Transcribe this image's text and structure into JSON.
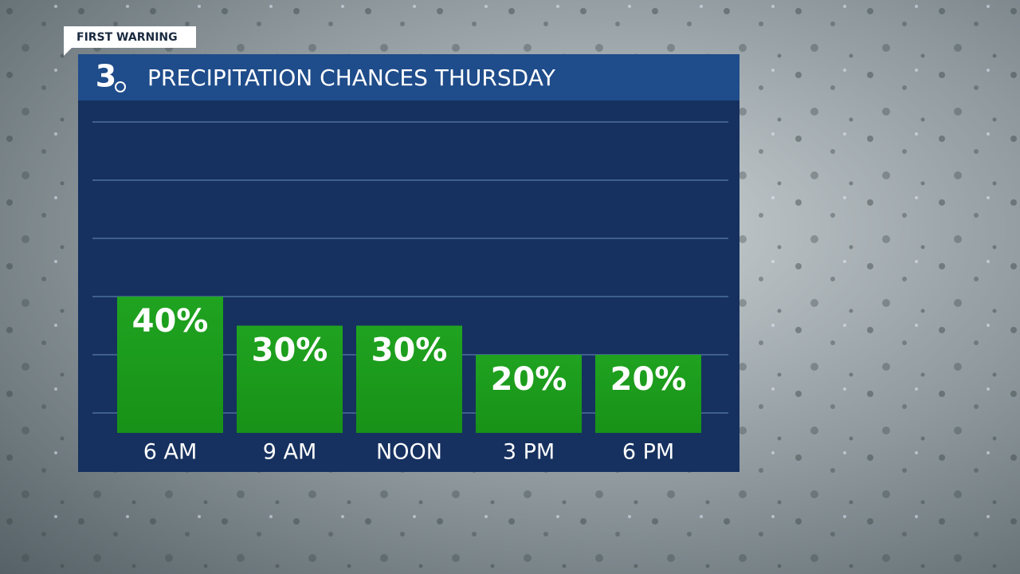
{
  "badge": "FIRST WARNING",
  "logo": "3",
  "chart_data": {
    "type": "bar",
    "title": "PRECIPITATION CHANCES THURSDAY",
    "categories": [
      "6 AM",
      "9 AM",
      "NOON",
      "3 PM",
      "6 PM"
    ],
    "values": [
      40,
      30,
      30,
      20,
      20
    ],
    "value_labels": [
      "40%",
      "30%",
      "30%",
      "20%",
      "20%"
    ],
    "color": "#1c9c1c",
    "ylim": [
      0,
      100
    ],
    "yticks": [
      0,
      20,
      40,
      60,
      80,
      100
    ],
    "grid": true
  }
}
